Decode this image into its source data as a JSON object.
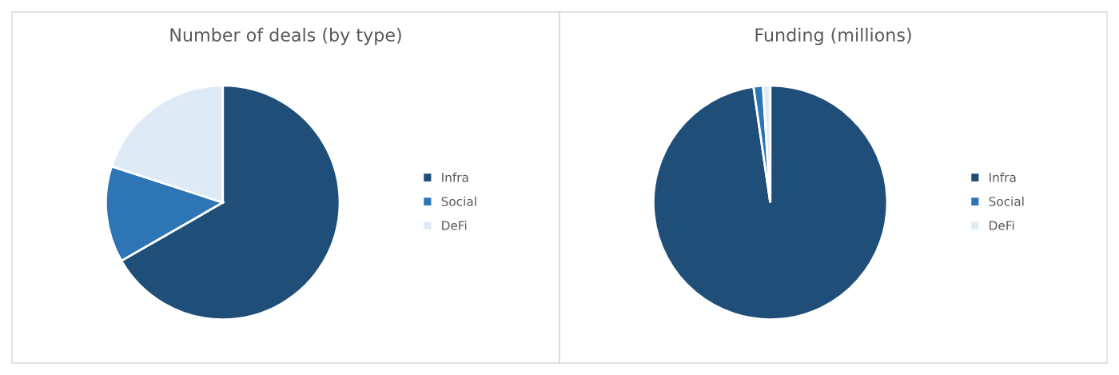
{
  "chart_data": [
    {
      "type": "pie",
      "title": "Number of deals (by type)",
      "categories": [
        "Infra",
        "Social",
        "DeFi"
      ],
      "values": [
        66.7,
        13.3,
        20.0
      ],
      "colors": [
        "#1f4e79",
        "#2e75b6",
        "#deebf7"
      ],
      "legend": "right"
    },
    {
      "type": "pie",
      "title": "Funding (millions)",
      "categories": [
        "Infra",
        "Social",
        "DeFi"
      ],
      "values": [
        97.7,
        1.3,
        1.0
      ],
      "colors": [
        "#1f4e79",
        "#2e75b6",
        "#deebf7"
      ],
      "legend": "right"
    }
  ]
}
